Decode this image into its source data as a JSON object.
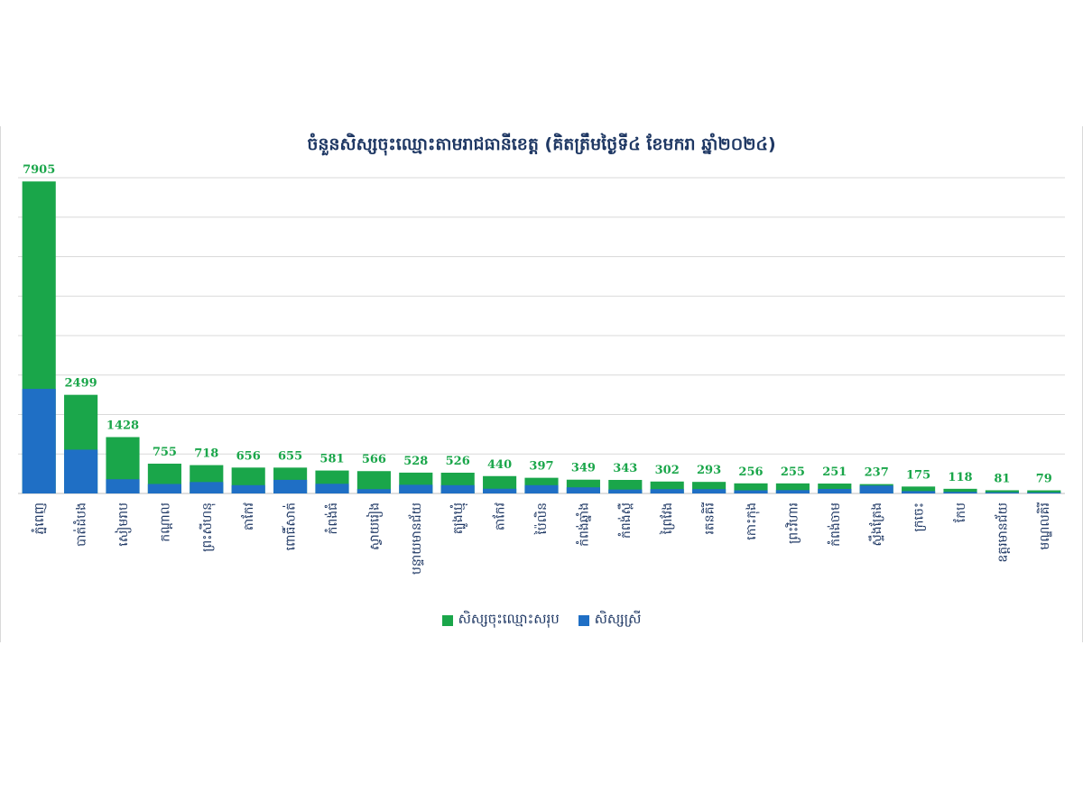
{
  "chart_data": {
    "type": "bar",
    "title": "ចំនួនសិស្សចុះឈ្មោះតាមរាជធានីខេត្ត (គិតត្រឹមថ្ងៃទី៤ ខែមករា ឆ្នាំ២០២៤)",
    "categories": [
      "ភ្នំពេញ",
      "បាត់ដំបង",
      "សៀមរាប",
      "កណ្ដាល",
      "ព្រះសីហនុ",
      "តាកែវ",
      "ពោធិ៍សាត់",
      "កំពង់ធំ",
      "ស្វាយរៀង",
      "បន្ទាយមានជ័យ",
      "ត្បូងឃ្មុំ",
      "តាកែវ",
      "ប៉ៃលិន",
      "កំពង់ឆ្នាំង",
      "កំពង់ស្ពឺ",
      "ព្រៃវែង",
      "រតនគិរី",
      "កោះកុង",
      "ព្រះវិហារ",
      "កំពង់ចាម",
      "ស្ទឹងត្រែង",
      "ក្រចេះ",
      "កែប",
      "ឧត្តរមានជ័យ",
      "មណ្ឌលគិរី"
    ],
    "series": [
      {
        "name": "សិស្សចុះឈ្មោះសរុប",
        "color": "#1aa64a",
        "values": [
          7905,
          2499,
          1428,
          755,
          718,
          656,
          655,
          581,
          566,
          528,
          526,
          440,
          397,
          349,
          343,
          302,
          293,
          256,
          255,
          251,
          237,
          175,
          118,
          81,
          79
        ]
      },
      {
        "name": "សិស្សស្រី",
        "color": "#1f6fc5",
        "values": [
          2650,
          1110,
          360,
          240,
          290,
          210,
          345,
          245,
          110,
          220,
          210,
          120,
          210,
          155,
          100,
          110,
          110,
          80,
          85,
          115,
          200,
          60,
          40,
          30,
          25
        ]
      }
    ],
    "stacked_overlay": true,
    "ylim": [
      0,
      8000
    ],
    "grid": true,
    "legend": "bottom"
  }
}
